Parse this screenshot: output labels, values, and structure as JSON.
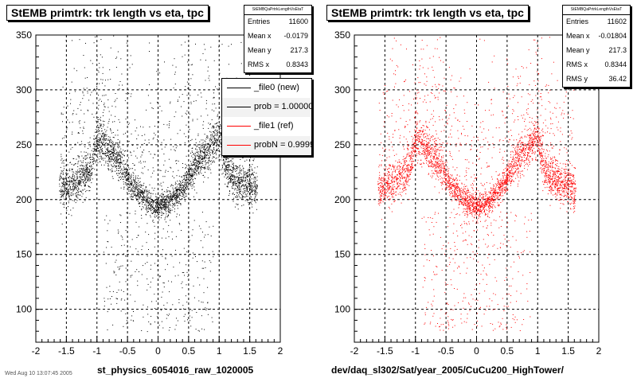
{
  "chart_data": [
    {
      "type": "scatter",
      "title": "StEMB primtrk: trk length vs eta, tpc",
      "xlabel": "st_physics_6054016_raw_1020005",
      "ylabel": "",
      "xlim": [
        -2,
        2
      ],
      "ylim": [
        70,
        350
      ],
      "xticks": [
        -2,
        -1.5,
        -1,
        -0.5,
        0,
        0.5,
        1,
        1.5,
        2
      ],
      "yticks": [
        100,
        150,
        200,
        250,
        300,
        350
      ],
      "grid": true,
      "color": "#000000",
      "stats": {
        "name": "StEMBQaPrtrkLengthVsEtaT",
        "rows": [
          {
            "label": "Entries",
            "value": "11600"
          },
          {
            "label": "Mean x",
            "value": "-0.0179"
          },
          {
            "label": "Mean y",
            "value": "217.3"
          },
          {
            "label": "RMS x",
            "value": "0.8343"
          }
        ]
      },
      "legend": [
        {
          "label": "_file0 (new)",
          "color": "#000000"
        },
        {
          "label": "prob = 1.000000",
          "color": "#000000"
        },
        {
          "label": "_file1 (ref)",
          "color": "#ff0000"
        },
        {
          "label": "probN = 0.999940",
          "color": "#ff0000"
        }
      ],
      "profile": {
        "x": [
          -1.6,
          -1.5,
          -1.4,
          -1.3,
          -1.2,
          -1.1,
          -1.0,
          -0.9,
          -0.8,
          -0.7,
          -0.6,
          -0.5,
          -0.4,
          -0.3,
          -0.2,
          -0.1,
          0.0,
          0.1,
          0.2,
          0.3,
          0.4,
          0.5,
          0.6,
          0.7,
          0.8,
          0.9,
          1.0,
          1.1,
          1.2,
          1.3,
          1.4,
          1.5,
          1.6
        ],
        "y": [
          210,
          212,
          214,
          218,
          222,
          228,
          255,
          250,
          244,
          238,
          232,
          220,
          212,
          206,
          200,
          196,
          195,
          196,
          199,
          205,
          212,
          220,
          230,
          238,
          244,
          252,
          258,
          228,
          222,
          216,
          214,
          212,
          210
        ]
      },
      "entries": 11600
    },
    {
      "type": "scatter",
      "title": "StEMB primtrk: trk length vs eta, tpc",
      "xlabel": "dev/daq_sl302/Sat/year_2005/CuCu200_HighTower/",
      "ylabel": "",
      "xlim": [
        -2,
        2
      ],
      "ylim": [
        70,
        350
      ],
      "xticks": [
        -2,
        -1.5,
        -1,
        -0.5,
        0,
        0.5,
        1,
        1.5,
        2
      ],
      "yticks": [
        100,
        150,
        200,
        250,
        300,
        350
      ],
      "grid": true,
      "color": "#ff0000",
      "stats": {
        "name": "StEMBQaPrtrkLengthVsEtaT",
        "rows": [
          {
            "label": "Entries",
            "value": "11602"
          },
          {
            "label": "Mean x",
            "value": "-0.01804"
          },
          {
            "label": "Mean y",
            "value": "217.3"
          },
          {
            "label": "RMS x",
            "value": "0.8344"
          },
          {
            "label": "RMS y",
            "value": "36.42"
          }
        ]
      },
      "profile": {
        "x": [
          -1.6,
          -1.5,
          -1.4,
          -1.3,
          -1.2,
          -1.1,
          -1.0,
          -0.9,
          -0.8,
          -0.7,
          -0.6,
          -0.5,
          -0.4,
          -0.3,
          -0.2,
          -0.1,
          0.0,
          0.1,
          0.2,
          0.3,
          0.4,
          0.5,
          0.6,
          0.7,
          0.8,
          0.9,
          1.0,
          1.1,
          1.2,
          1.3,
          1.4,
          1.5,
          1.6
        ],
        "y": [
          210,
          212,
          214,
          218,
          222,
          228,
          255,
          250,
          244,
          238,
          232,
          220,
          212,
          206,
          200,
          196,
          195,
          196,
          199,
          205,
          212,
          220,
          230,
          238,
          244,
          252,
          258,
          228,
          222,
          216,
          214,
          212,
          210
        ]
      },
      "entries": 11602
    }
  ],
  "footer": "Wed Aug 10 13:07:45 2005"
}
